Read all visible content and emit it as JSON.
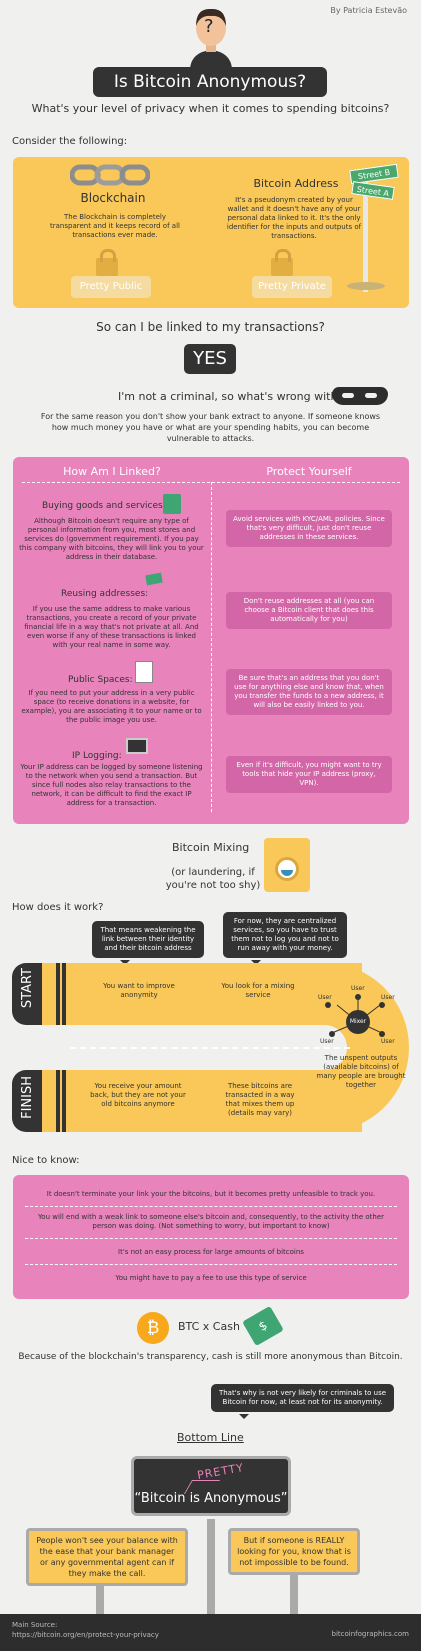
{
  "header": {
    "author": "By Patricia Estevão",
    "title": "Is Bitcoin Anonymous?",
    "subtitle": "What's your level of privacy when it comes to spending bitcoins?",
    "head_glyph": "?"
  },
  "consider": {
    "heading": "Consider the following:",
    "blockchain": {
      "title": "Blockchain",
      "text": "The Blockchain is completely transparent and it keeps record of all transactions ever made.",
      "badge": "Pretty Public"
    },
    "address": {
      "title": "Bitcoin Address",
      "text": "It's a pseudonym created by your wallet and it doesn't have any of your personal data linked to it. It's the only identifier for the inputs and outputs of transactions.",
      "badge": "Pretty Private",
      "sign_b": "Street B",
      "sign_a": "Street A"
    }
  },
  "linked": {
    "question": "So can I be linked to my transactions?",
    "answer": "YES",
    "criminal": "I'm not a criminal, so what's wrong with that?",
    "explanation": "For the same reason you don't show your bank extract to anyone. If someone knows how much money you have or what are your spending habits, you can become vulnerable to attacks."
  },
  "how_linked": {
    "left_heading": "How Am I Linked?",
    "right_heading": "Protect Yourself",
    "items": [
      {
        "title": "Buying goods and services:",
        "text": "Although Bitcoin doesn't require any type of personal information from you, most stores and services do (government requirement). If you pay this company with bitcoins, they will link you to your address in their database.",
        "protect": "Avoid services with KYC/AML policies. Since that's very difficult, just don't reuse addresses in these services."
      },
      {
        "title": "Reusing addresses:",
        "text": "If you use the same address to make various transactions, you create a record of your private financial life in a way that's not private at all. And even worse if any of these transactions is linked with your real name in some way.",
        "protect": "Don't reuse addresses at all (you can choose a Bitcoin client that does this automatically for you)"
      },
      {
        "title": "Public Spaces:",
        "text": "If you need to put your address in a very public space (to receive donations in a website, for example), you are associating it to your name or to the public image you use.",
        "protect": "Be sure that's an address that you don't use for anything else and know that, when you transfer the funds to a new address, it will also be easily linked to you."
      },
      {
        "title": "IP Logging:",
        "text": "Your IP address can be logged by someone listening to the network when you send a transaction. But since full nodes also relay transactions to the network, it can be difficult to find the exact IP address for a transaction.",
        "protect": "Even if it's difficult, you might want to try tools that hide your IP address (proxy, VPN)."
      }
    ]
  },
  "mixing": {
    "title": "Bitcoin Mixing",
    "subtitle": "(or laundering, if you're not too shy)",
    "how": "How does it work?",
    "tip1": "That means weakening the link between their identity and their bitcoin address",
    "tip2": "For now, they are centralized services, so you have to trust them not to log you and not to run away with your money.",
    "start": "START",
    "finish": "FINISH",
    "step1": "You want to improve anonymity",
    "step2": "You look for a mixing service",
    "mixer": "Mixer",
    "user": "User",
    "step3": "The unspent outputs (available bitcoins) of many people are brought together",
    "step4": "These bitcoins are transacted in a way that mixes them up (details may vary)",
    "step5": "You receive your amount back, but they are not your old bitcoins anymore"
  },
  "nice": {
    "heading": "Nice to know:",
    "items": [
      "It doesn't terminate your link your the bitcoins, but it becomes pretty unfeasible to track you.",
      "You will end with a weak link to someone else's bitcoin and, consequently, to the activity the other person was doing. (Not something to worry, but important to know)",
      "It's not an easy process for large amounts of bitcoins",
      "You might have to pay a fee to use this type of service"
    ]
  },
  "cash": {
    "btc_glyph": "₿",
    "label": "BTC x Cash",
    "cash_glyph": "$",
    "text": "Because of the blockchain's transparency, cash is still more anonymous than Bitcoin.",
    "tip": "That's why is not very likely for criminals to use Bitcoin for now, at least not for its anonymity."
  },
  "bottom": {
    "heading": "Bottom Line",
    "sign": "“Bitcoin  is  Anonymous”",
    "pretty": "PRETTY",
    "left_board": "People won't see your balance with the ease that your bank manager or any governmental agent can if they make the call.",
    "right_board": "But if someone is REALLY looking for you, know that is not impossible to be found."
  },
  "footer": {
    "source_label": "Main Source:",
    "source_url": "https://bitcoin.org/en/protect-your-privacy",
    "site": "bitcoinfographics.com"
  }
}
